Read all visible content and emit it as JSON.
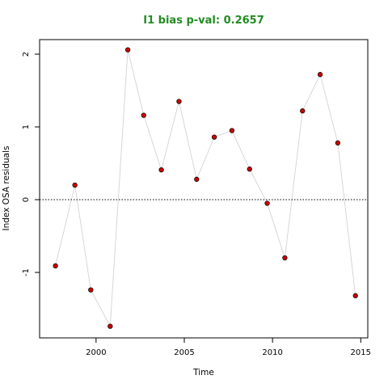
{
  "chart_data": {
    "type": "scatter",
    "title": "I1 bias p-val: 0.2657",
    "title_color": "#228B22",
    "xlabel": "Time",
    "ylabel": "Index OSA residuals",
    "xlim": [
      1996.8,
      2015.4
    ],
    "ylim": [
      -1.9,
      2.2
    ],
    "x_ticks": [
      2000,
      2005,
      2010,
      2015
    ],
    "y_ticks": [
      -1,
      0,
      1,
      2
    ],
    "reference_line": 0,
    "point_color": "#cc0000",
    "line_color": "#d3d3d3",
    "grid": false,
    "x": [
      1997.7,
      1998.8,
      1999.7,
      2000.8,
      2001.8,
      2002.7,
      2003.7,
      2004.7,
      2005.7,
      2006.7,
      2007.7,
      2008.7,
      2009.7,
      2010.7,
      2011.7,
      2012.7,
      2013.7,
      2014.7
    ],
    "y": [
      -0.91,
      0.2,
      -1.24,
      -1.74,
      2.06,
      1.16,
      0.41,
      1.35,
      0.28,
      0.86,
      0.95,
      0.42,
      -0.05,
      -0.8,
      1.22,
      1.72,
      0.78,
      -1.32
    ]
  }
}
